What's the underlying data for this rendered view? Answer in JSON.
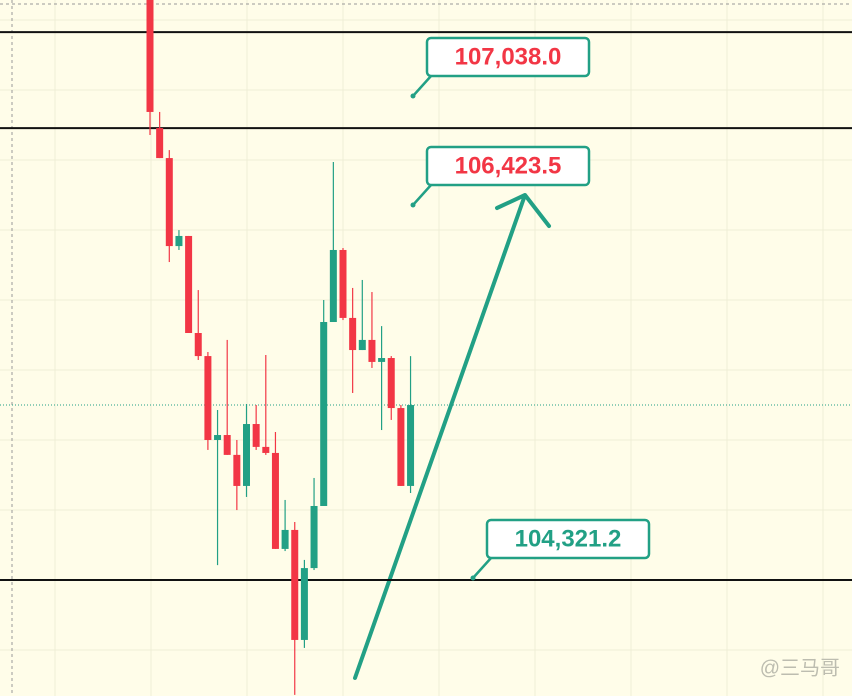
{
  "chart_data": {
    "type": "candlestick",
    "ylim": [
      103656,
      107579
    ],
    "up_color": "#22a085",
    "down_color": "#f23645",
    "grid": true,
    "candles": [
      {
        "open": 107579,
        "high": 107579,
        "low": 106818,
        "close": 106948
      },
      {
        "open": 106857,
        "high": 106948,
        "low": 106688,
        "close": 106688
      },
      {
        "open": 106688,
        "high": 106733,
        "low": 106102,
        "close": 106192
      },
      {
        "open": 106192,
        "high": 106282,
        "low": 106170,
        "close": 106249
      },
      {
        "open": 106249,
        "high": 106249,
        "low": 105702,
        "close": 105702
      },
      {
        "open": 105702,
        "high": 105944,
        "low": 105550,
        "close": 105572
      },
      {
        "open": 105572,
        "high": 105595,
        "low": 105043,
        "close": 105099
      },
      {
        "open": 105099,
        "high": 105268,
        "low": 104394,
        "close": 105127
      },
      {
        "open": 105127,
        "high": 105663,
        "low": 105015,
        "close": 105015
      },
      {
        "open": 105015,
        "high": 105099,
        "low": 104704,
        "close": 104840
      },
      {
        "open": 104840,
        "high": 105302,
        "low": 104778,
        "close": 105189
      },
      {
        "open": 105189,
        "high": 105296,
        "low": 105043,
        "close": 105060
      },
      {
        "open": 105060,
        "high": 105578,
        "low": 105015,
        "close": 105026
      },
      {
        "open": 105026,
        "high": 105144,
        "low": 104485,
        "close": 104485
      },
      {
        "open": 104485,
        "high": 104761,
        "low": 104473,
        "close": 104592
      },
      {
        "open": 104592,
        "high": 104637,
        "low": 103662,
        "close": 103972
      },
      {
        "open": 103972,
        "high": 104423,
        "low": 103927,
        "close": 104377
      },
      {
        "open": 104377,
        "high": 104885,
        "low": 104366,
        "close": 104727
      },
      {
        "open": 104727,
        "high": 105888,
        "low": 104727,
        "close": 105764
      },
      {
        "open": 105764,
        "high": 106666,
        "low": 105764,
        "close": 106170
      },
      {
        "open": 106170,
        "high": 106181,
        "low": 105775,
        "close": 105787
      },
      {
        "open": 105787,
        "high": 105956,
        "low": 105364,
        "close": 105606
      },
      {
        "open": 105606,
        "high": 106001,
        "low": 105606,
        "close": 105663
      },
      {
        "open": 105663,
        "high": 105933,
        "low": 105505,
        "close": 105539
      },
      {
        "open": 105539,
        "high": 105741,
        "low": 105155,
        "close": 105561
      },
      {
        "open": 105561,
        "high": 105572,
        "low": 105212,
        "close": 105279
      },
      {
        "open": 105279,
        "high": 105296,
        "low": 104840,
        "close": 104840
      },
      {
        "open": 104840,
        "high": 105572,
        "low": 104800,
        "close": 105296
      }
    ],
    "hlines": [
      107398,
      106857,
      104310
    ],
    "price_line": 105296,
    "annotations": [
      {
        "value": 107038.0,
        "label": "107,038.0",
        "color": "#f23645"
      },
      {
        "value": 106423.5,
        "label": "106,423.5",
        "color": "#f23645"
      },
      {
        "value": 104321.2,
        "label": "104,321.2",
        "color": "#22a085"
      }
    ],
    "watermark": "@三马哥"
  }
}
